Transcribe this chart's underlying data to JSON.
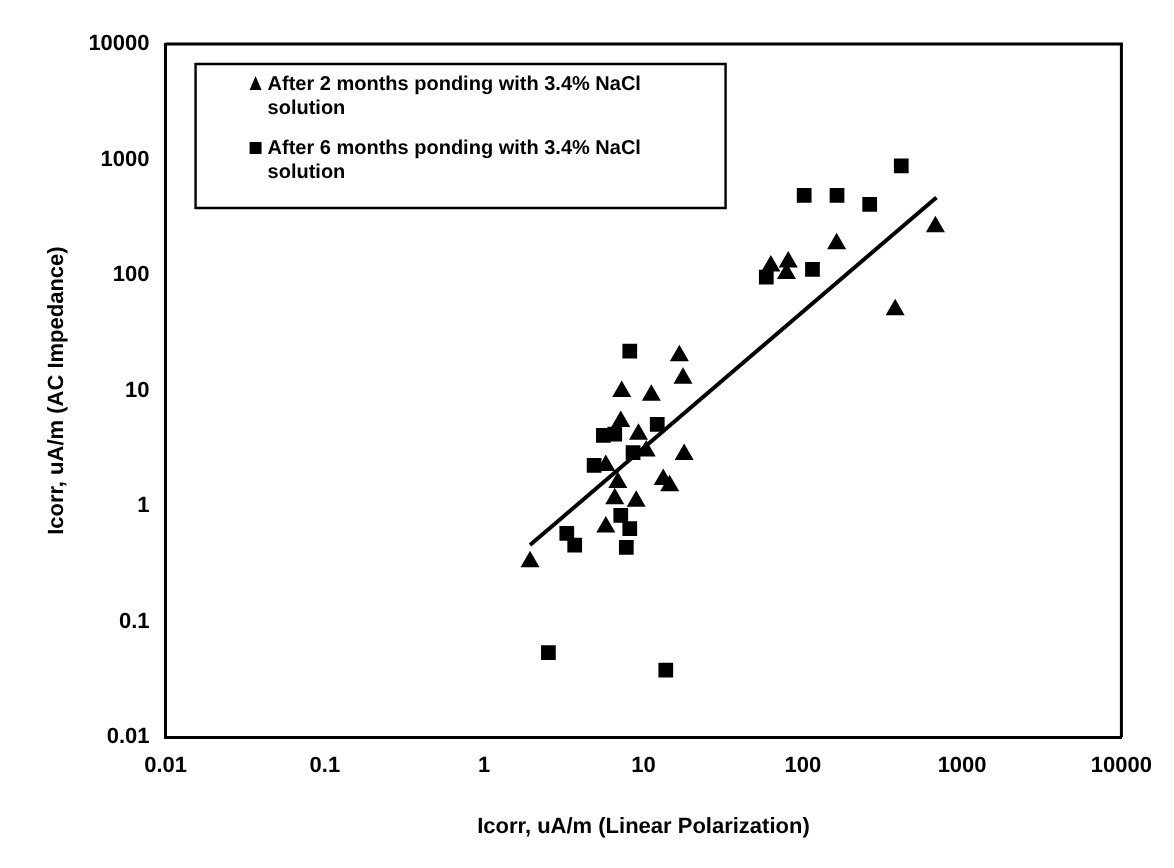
{
  "chart_data": {
    "type": "scatter",
    "xlabel": "Icorr, uA/m (Linear Polarization)",
    "ylabel": "Icorr, uA/m (AC Impedance)",
    "log": "xy",
    "xlim": [
      0.01,
      10000
    ],
    "ylim": [
      0.01,
      10000
    ],
    "xticks": [
      0.01,
      0.1,
      1,
      10,
      100,
      1000,
      10000
    ],
    "yticks": [
      0.01,
      0.1,
      1,
      10,
      100,
      1000,
      10000
    ],
    "grid": false,
    "legend": "top left",
    "series": [
      {
        "name": "After 2 months ponding with 3.4% NaCl solution",
        "color": "#000000",
        "marker": "triangle",
        "x": [
          1.94,
          5.8,
          6.6,
          6.9,
          5.8,
          7.3,
          7.2,
          9.0,
          9.3,
          11.2,
          10.4,
          16.8,
          17.7,
          18,
          13.3,
          14.6,
          63,
          81,
          79,
          163,
          380,
          680
        ],
        "values": [
          0.33,
          0.66,
          1.16,
          1.6,
          2.25,
          9.8,
          5.4,
          1.1,
          4.2,
          9.1,
          3.0,
          20,
          12.8,
          2.8,
          1.7,
          1.5,
          120,
          130,
          103,
          187,
          50,
          262
        ]
      },
      {
        "name": "After 6 months ponding with 3.4% NaCl solution",
        "color": "#000000",
        "marker": "square",
        "x": [
          2.53,
          13.8,
          3.3,
          3.7,
          7.8,
          8.2,
          7.2,
          4.9,
          5.6,
          6.6,
          8.2,
          12.2,
          8.6,
          59,
          115,
          102,
          164,
          263,
          415
        ],
        "values": [
          0.054,
          0.038,
          0.58,
          0.46,
          0.44,
          0.64,
          0.83,
          2.25,
          4.1,
          4.2,
          22,
          5.1,
          2.9,
          96,
          112,
          490,
          490,
          410,
          880
        ]
      },
      {
        "type": "line",
        "color": "#000000",
        "marker": "none",
        "x": [
          1.94,
          690
        ],
        "values": [
          0.46,
          470
        ]
      }
    ]
  }
}
